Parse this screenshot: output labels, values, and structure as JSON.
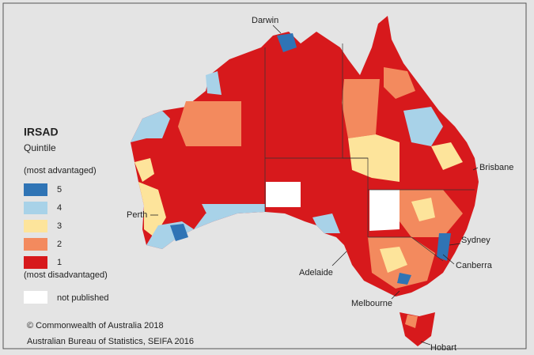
{
  "legend": {
    "title": "IRSAD",
    "subtitle": "Quintile",
    "top_note": "(most advantaged)",
    "bottom_note": "(most disadvantaged)",
    "items": [
      {
        "label": "5",
        "color": "#2f74b5"
      },
      {
        "label": "4",
        "color": "#a8d2e8"
      },
      {
        "label": "3",
        "color": "#fde49b"
      },
      {
        "label": "2",
        "color": "#f38a5e"
      },
      {
        "label": "1",
        "color": "#d7191c"
      }
    ],
    "not_published": {
      "label": "not published",
      "color": "#ffffff"
    }
  },
  "cities": [
    "Darwin",
    "Brisbane",
    "Perth",
    "Sydney",
    "Canberra",
    "Adelaide",
    "Melbourne",
    "Hobart"
  ],
  "footer": {
    "copyright": "© Commonwealth of Australia 2018",
    "source": "Australian Bureau of Statistics, SEIFA 2016"
  }
}
